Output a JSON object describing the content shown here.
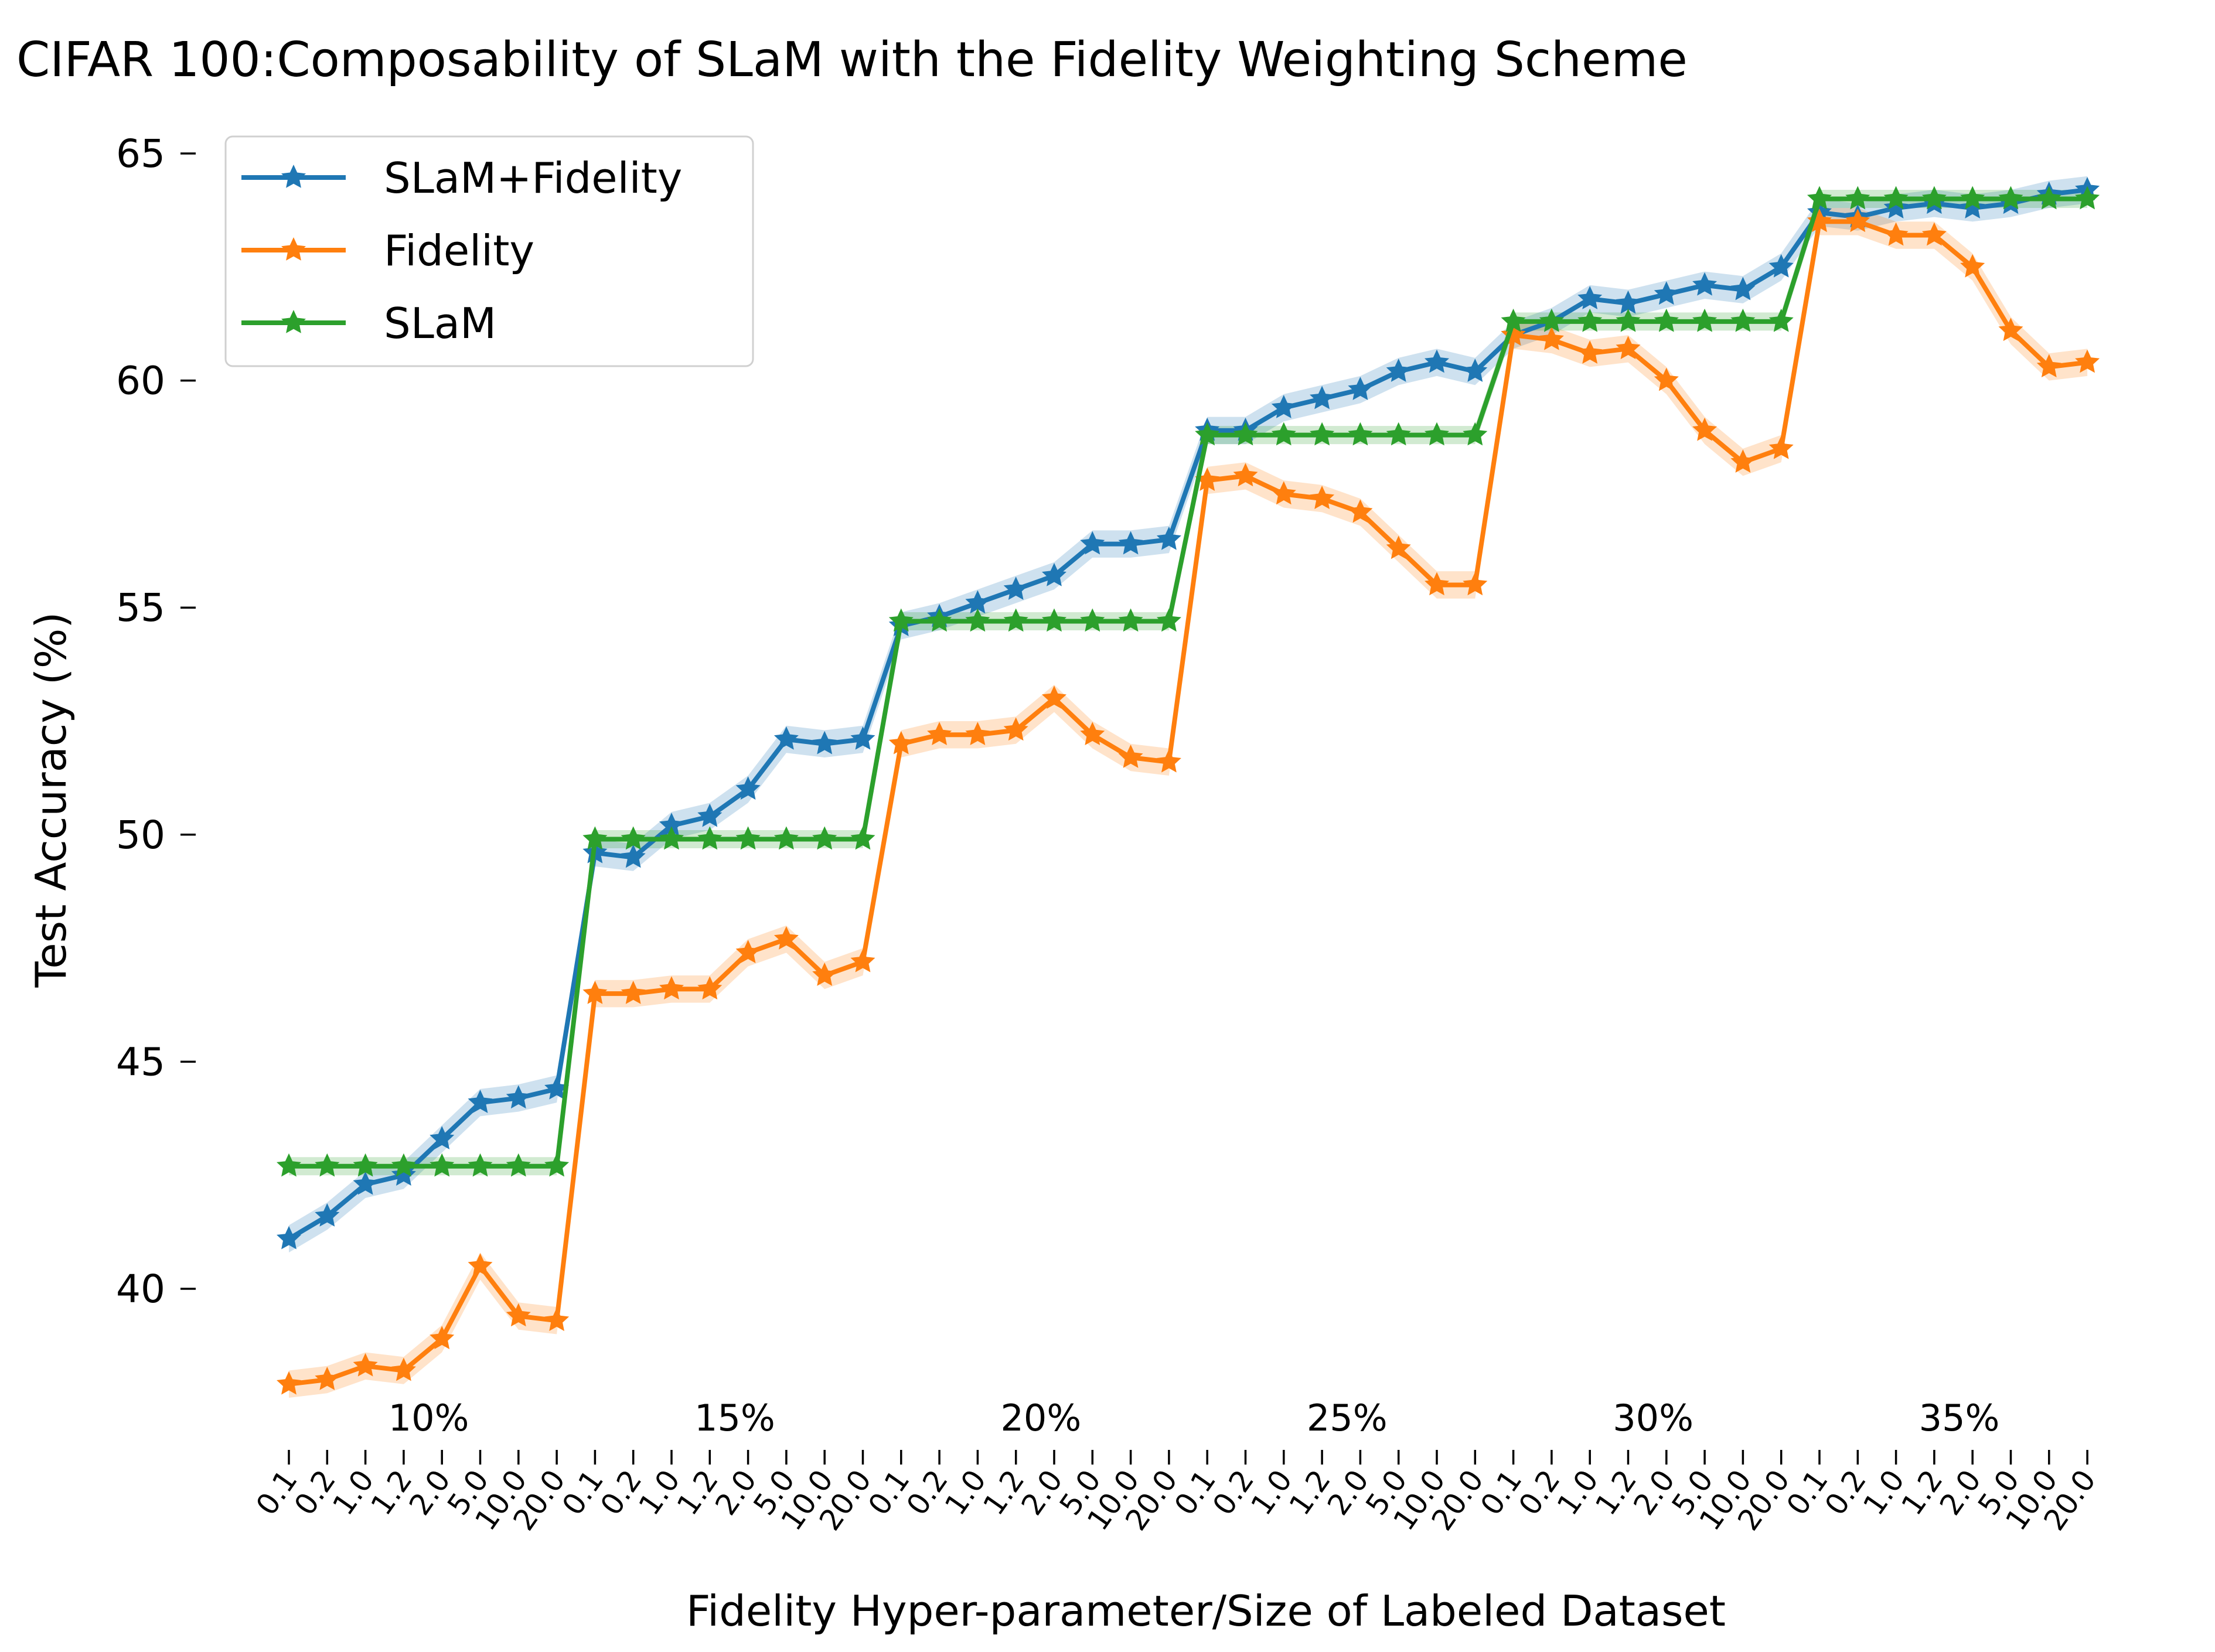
{
  "chart_data": {
    "type": "line",
    "title": "CIFAR 100:Composability of SLaM with the Fidelity Weighting Scheme",
    "xlabel": "Fidelity Hyper-parameter/Size of Labeled Dataset",
    "ylabel": "Test Accuracy (%)",
    "ylim": [
      38.0,
      65.2
    ],
    "yticks": [
      40,
      45,
      50,
      55,
      60,
      65
    ],
    "grid": false,
    "legend_position": "top-left",
    "x_tick_labels": [
      "0.1",
      "0.2",
      "1.0",
      "1.2",
      "2.0",
      "5.0",
      "10.0",
      "20.0",
      "0.1",
      "0.2",
      "1.0",
      "1.2",
      "2.0",
      "5.0",
      "10.0",
      "20.0",
      "0.1",
      "0.2",
      "1.0",
      "1.2",
      "2.0",
      "5.0",
      "10.0",
      "20.0",
      "0.1",
      "0.2",
      "1.0",
      "1.2",
      "2.0",
      "5.0",
      "10.0",
      "20.0",
      "0.1",
      "0.2",
      "1.0",
      "1.2",
      "2.0",
      "5.0",
      "10.0",
      "20.0",
      "0.1",
      "0.2",
      "1.0",
      "1.2",
      "2.0",
      "5.0",
      "10.0",
      "20.0"
    ],
    "group_labels": [
      "10%",
      "15%",
      "20%",
      "25%",
      "30%",
      "35%"
    ],
    "series": [
      {
        "name": "SLaM+Fidelity",
        "color": "#1f77b4",
        "band": 0.3,
        "values": [
          41.1,
          41.6,
          42.3,
          42.5,
          43.3,
          44.1,
          44.2,
          44.4,
          49.6,
          49.5,
          50.2,
          50.4,
          51.0,
          52.1,
          52.0,
          52.1,
          54.6,
          54.8,
          55.1,
          55.4,
          55.7,
          56.4,
          56.4,
          56.5,
          58.9,
          58.9,
          59.4,
          59.6,
          59.8,
          60.2,
          60.4,
          60.2,
          61.0,
          61.3,
          61.8,
          61.7,
          61.9,
          62.1,
          62.0,
          62.5,
          63.7,
          63.6,
          63.8,
          63.9,
          63.8,
          63.9,
          64.1,
          64.2
        ]
      },
      {
        "name": "Fidelity",
        "color": "#ff7f0e",
        "band": 0.3,
        "values": [
          37.9,
          38.0,
          38.3,
          38.2,
          38.9,
          40.5,
          39.4,
          39.3,
          46.5,
          46.5,
          46.6,
          46.6,
          47.4,
          47.7,
          46.9,
          47.2,
          52.0,
          52.2,
          52.2,
          52.3,
          53.0,
          52.2,
          51.7,
          51.6,
          57.8,
          57.9,
          57.5,
          57.4,
          57.1,
          56.3,
          55.5,
          55.5,
          61.0,
          60.9,
          60.6,
          60.7,
          60.0,
          58.9,
          58.2,
          58.5,
          63.5,
          63.5,
          63.2,
          63.2,
          62.5,
          61.1,
          60.3,
          60.4
        ]
      },
      {
        "name": "SLaM",
        "color": "#2ca02c",
        "band": 0.2,
        "values": [
          42.7,
          42.7,
          42.7,
          42.7,
          42.7,
          42.7,
          42.7,
          42.7,
          49.9,
          49.9,
          49.9,
          49.9,
          49.9,
          49.9,
          49.9,
          49.9,
          54.7,
          54.7,
          54.7,
          54.7,
          54.7,
          54.7,
          54.7,
          54.7,
          58.8,
          58.8,
          58.8,
          58.8,
          58.8,
          58.8,
          58.8,
          58.8,
          61.3,
          61.3,
          61.3,
          61.3,
          61.3,
          61.3,
          61.3,
          61.3,
          64.0,
          64.0,
          64.0,
          64.0,
          64.0,
          64.0,
          64.0,
          64.0
        ]
      }
    ]
  }
}
